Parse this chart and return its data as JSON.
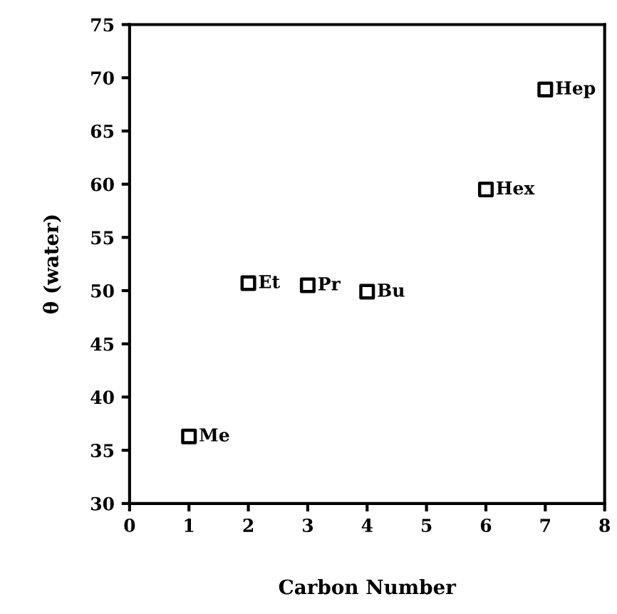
{
  "chart_data": {
    "type": "scatter",
    "xlabel": "Carbon Number",
    "ylabel": "θ (water)",
    "x": [
      1,
      2,
      3,
      4,
      6,
      7
    ],
    "values": [
      36.3,
      50.7,
      50.5,
      49.9,
      59.5,
      68.9
    ],
    "color": "#000000",
    "marker": "square",
    "grid": false,
    "legend": false,
    "xlim": [
      0,
      8
    ],
    "ylim": [
      30,
      75
    ],
    "xticks": [
      0,
      1,
      2,
      3,
      4,
      5,
      6,
      7,
      8
    ],
    "yticks": [
      30,
      35,
      40,
      45,
      50,
      55,
      60,
      65,
      70,
      75
    ],
    "annotations": [
      {
        "text": "Me",
        "x": 1,
        "y": 36.3
      },
      {
        "text": "Et",
        "x": 2,
        "y": 50.7
      },
      {
        "text": "Pr",
        "x": 3,
        "y": 50.5
      },
      {
        "text": "Bu",
        "x": 4,
        "y": 49.9
      },
      {
        "text": "Hex",
        "x": 6,
        "y": 59.5
      },
      {
        "text": "Hep",
        "x": 7,
        "y": 68.9
      }
    ]
  }
}
